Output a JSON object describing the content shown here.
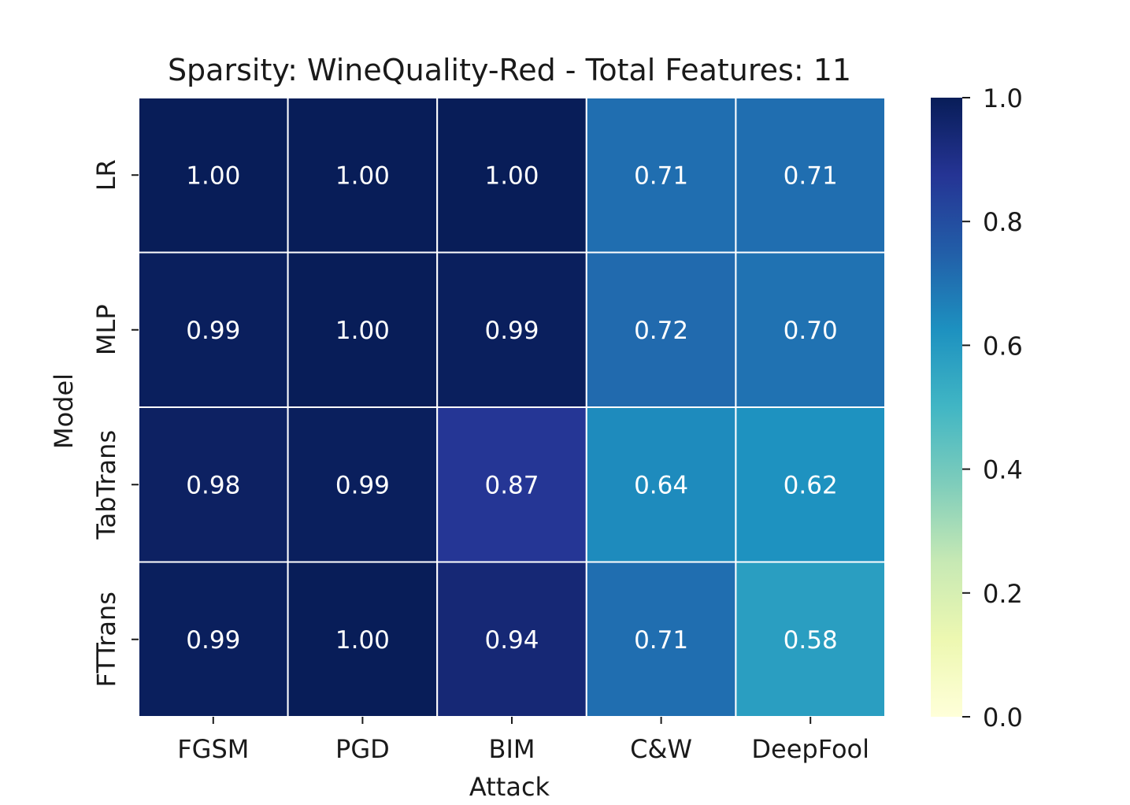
{
  "chart_data": {
    "type": "heatmap",
    "title": "Sparsity: WineQuality-Red - Total Features: 11",
    "xlabel": "Attack",
    "ylabel": "Model",
    "x_categories": [
      "FGSM",
      "PGD",
      "BIM",
      "C&W",
      "DeepFool"
    ],
    "y_categories": [
      "LR",
      "MLP",
      "TabTrans",
      "FTTrans"
    ],
    "values": [
      [
        1.0,
        1.0,
        1.0,
        0.71,
        0.71
      ],
      [
        0.99,
        1.0,
        0.99,
        0.72,
        0.7
      ],
      [
        0.98,
        0.99,
        0.87,
        0.64,
        0.62
      ],
      [
        0.99,
        1.0,
        0.94,
        0.71,
        0.58
      ]
    ],
    "value_format_decimals": 2,
    "colormap": "YlGnBu",
    "colorbar": {
      "range": [
        0.0,
        1.0
      ],
      "ticks": [
        "0.0",
        "0.2",
        "0.4",
        "0.6",
        "0.8",
        "1.0"
      ]
    },
    "cell_border_color": "#ffffff",
    "annotation_color": "#ffffff"
  }
}
